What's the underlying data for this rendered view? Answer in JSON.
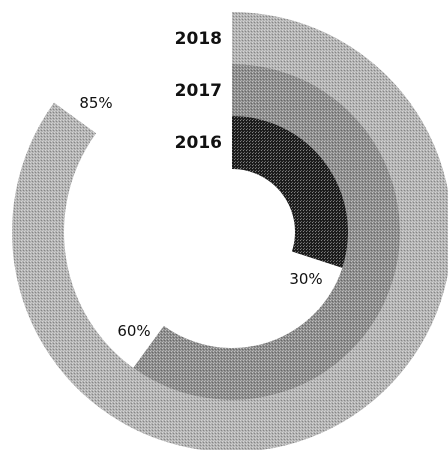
{
  "chart_data": {
    "type": "radial-bar",
    "series": [
      {
        "name": "2016",
        "value": 30,
        "label": "30%",
        "color": "#1e1e1e"
      },
      {
        "name": "2017",
        "value": 60,
        "label": "60%",
        "color": "#8c8c8c"
      },
      {
        "name": "2018",
        "value": 85,
        "label": "85%",
        "color": "#b3b3b3"
      }
    ],
    "max": 100,
    "pattern": "dotted-texture"
  }
}
